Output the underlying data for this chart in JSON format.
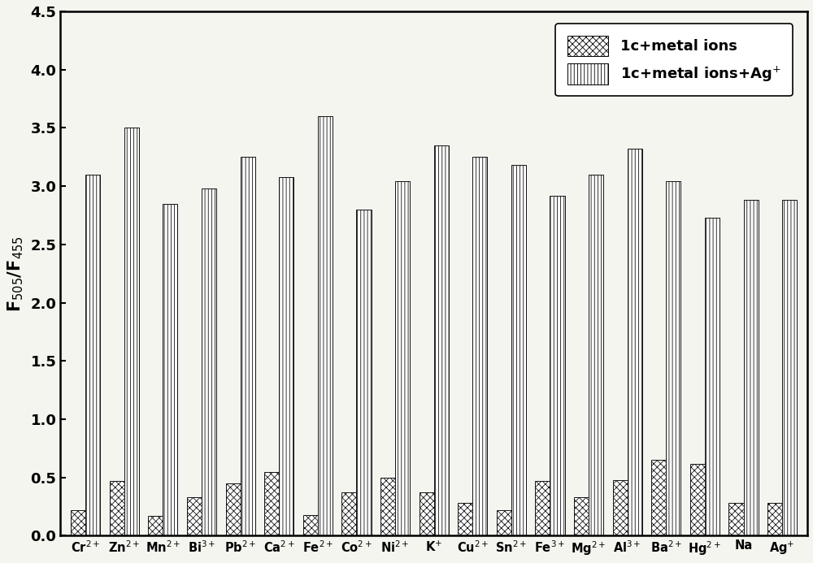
{
  "categories_raw": [
    "Cr",
    "Zn",
    "Mn",
    "Bi",
    "Pb",
    "Ca",
    "Fe",
    "Co",
    "Ni",
    "K",
    "Cu",
    "Sn",
    "Fe",
    "Mg",
    "Al",
    "Ba",
    "Hg",
    "Na",
    "Ag"
  ],
  "superscripts": [
    "2+",
    "2+",
    "2+",
    "3+",
    "2+",
    "2+",
    "2+",
    "2+",
    "2+",
    "+",
    "2+",
    "2+",
    "3+",
    "2+",
    "3+",
    "2+",
    "2+",
    "",
    "+"
  ],
  "values_metal": [
    0.22,
    0.47,
    0.17,
    0.33,
    0.45,
    0.55,
    0.18,
    0.37,
    0.5,
    0.37,
    0.28,
    0.22,
    0.47,
    0.33,
    0.48,
    0.65,
    0.62,
    0.28,
    0.28
  ],
  "values_metal_ag": [
    3.1,
    3.5,
    2.85,
    2.98,
    3.25,
    3.08,
    3.6,
    2.8,
    3.04,
    3.35,
    3.25,
    3.18,
    2.92,
    3.1,
    3.32,
    3.04,
    2.73,
    2.88,
    2.88
  ],
  "ylabel": "F$_{505}$/F$_{455}$",
  "ylim": [
    0,
    4.5
  ],
  "yticks": [
    0.0,
    0.5,
    1.0,
    1.5,
    2.0,
    2.5,
    3.0,
    3.5,
    4.0,
    4.5
  ],
  "legend1": "1c+metal ions",
  "legend2": "1c+metal ions+Ag$^{+}$",
  "bar_width": 0.38,
  "figsize": [
    10.0,
    6.93
  ],
  "dpi": 100,
  "background_color": "#f5f5f0",
  "edge_color": "#111111"
}
